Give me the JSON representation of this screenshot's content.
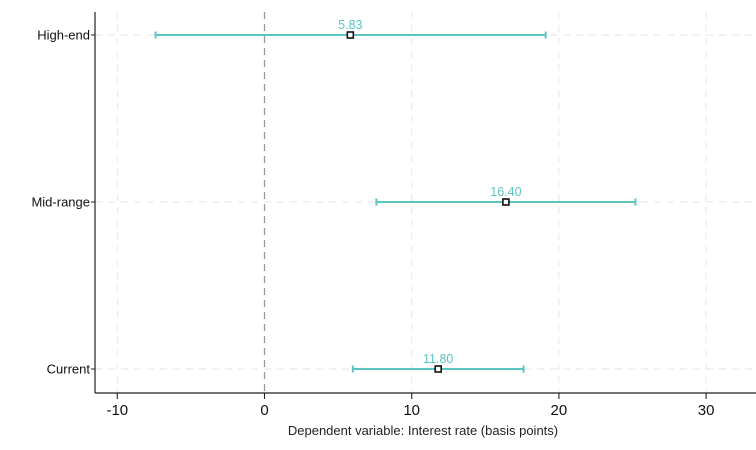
{
  "chart_data": {
    "type": "scatter",
    "subtype": "coefficient-plot-with-confidence-intervals",
    "title": "",
    "xlabel": "Dependent variable: Interest rate (basis points)",
    "ylabel": "",
    "xlim": [
      -11.5,
      33
    ],
    "xticks": [
      -10,
      0,
      10,
      20,
      30
    ],
    "reference_line_x": 0,
    "grid": true,
    "legend": "none",
    "categories": [
      "High-end",
      "Mid-range",
      "Current"
    ],
    "estimates": [
      5.83,
      16.4,
      11.8
    ],
    "estimate_labels": [
      "5.83",
      "16.40",
      "11.80"
    ],
    "ci_low": [
      -7.4,
      7.6,
      6.0
    ],
    "ci_high": [
      19.1,
      25.2,
      17.6
    ],
    "colors": {
      "interval": "#5bc4c4",
      "marker_edge": "#111111",
      "marker_fill": "#ffffff",
      "grid": "#e6e6e6",
      "reference": "#999999",
      "axis": "#222222"
    }
  }
}
